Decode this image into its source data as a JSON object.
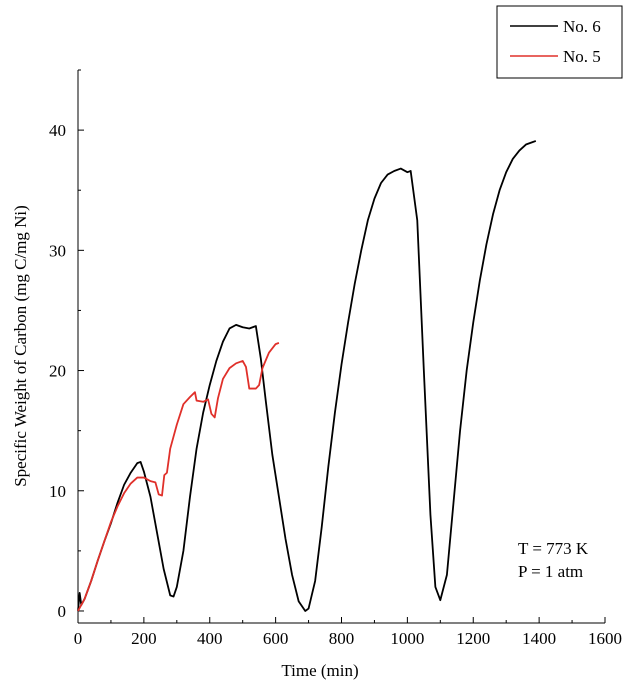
{
  "chart_data": {
    "type": "line",
    "title": "",
    "xlabel": "Time (min)",
    "ylabel": "Specific Weight of Carbon (mg C/mg Ni)",
    "xlim": [
      0,
      1600
    ],
    "ylim": [
      -1,
      45
    ],
    "xticks": [
      0,
      200,
      400,
      600,
      800,
      1000,
      1200,
      1400,
      1600
    ],
    "yticks": [
      0,
      10,
      20,
      30,
      40
    ],
    "grid": false,
    "legend_position": "top-right",
    "annotations": [
      "T = 773 K",
      "P = 1 atm"
    ],
    "series": [
      {
        "name": "No. 6",
        "color": "#000000",
        "points": [
          [
            0,
            0
          ],
          [
            5,
            1.5
          ],
          [
            10,
            0.5
          ],
          [
            20,
            1.0
          ],
          [
            40,
            2.5
          ],
          [
            60,
            4.2
          ],
          [
            80,
            5.8
          ],
          [
            100,
            7.3
          ],
          [
            120,
            9.0
          ],
          [
            140,
            10.5
          ],
          [
            160,
            11.5
          ],
          [
            180,
            12.3
          ],
          [
            190,
            12.4
          ],
          [
            200,
            11.6
          ],
          [
            220,
            9.5
          ],
          [
            240,
            6.5
          ],
          [
            260,
            3.5
          ],
          [
            280,
            1.3
          ],
          [
            290,
            1.2
          ],
          [
            300,
            2.0
          ],
          [
            320,
            5.0
          ],
          [
            340,
            9.5
          ],
          [
            360,
            13.5
          ],
          [
            380,
            16.5
          ],
          [
            400,
            18.8
          ],
          [
            420,
            20.8
          ],
          [
            440,
            22.4
          ],
          [
            460,
            23.5
          ],
          [
            480,
            23.8
          ],
          [
            500,
            23.6
          ],
          [
            520,
            23.5
          ],
          [
            540,
            23.7
          ],
          [
            555,
            21.0
          ],
          [
            570,
            17.5
          ],
          [
            590,
            13.0
          ],
          [
            610,
            9.5
          ],
          [
            630,
            6.0
          ],
          [
            650,
            3.0
          ],
          [
            670,
            0.8
          ],
          [
            690,
            0.0
          ],
          [
            700,
            0.2
          ],
          [
            720,
            2.5
          ],
          [
            740,
            7.0
          ],
          [
            760,
            12.0
          ],
          [
            780,
            16.5
          ],
          [
            800,
            20.5
          ],
          [
            820,
            24.0
          ],
          [
            840,
            27.2
          ],
          [
            860,
            30.0
          ],
          [
            880,
            32.5
          ],
          [
            900,
            34.3
          ],
          [
            920,
            35.6
          ],
          [
            940,
            36.3
          ],
          [
            960,
            36.6
          ],
          [
            980,
            36.8
          ],
          [
            1000,
            36.5
          ],
          [
            1010,
            36.6
          ],
          [
            1030,
            32.5
          ],
          [
            1050,
            20.0
          ],
          [
            1070,
            8.0
          ],
          [
            1085,
            2.0
          ],
          [
            1100,
            0.9
          ],
          [
            1120,
            3.0
          ],
          [
            1140,
            9.0
          ],
          [
            1160,
            15.0
          ],
          [
            1180,
            20.0
          ],
          [
            1200,
            24.0
          ],
          [
            1220,
            27.5
          ],
          [
            1240,
            30.5
          ],
          [
            1260,
            33.0
          ],
          [
            1280,
            35.0
          ],
          [
            1300,
            36.5
          ],
          [
            1320,
            37.6
          ],
          [
            1340,
            38.3
          ],
          [
            1360,
            38.8
          ],
          [
            1380,
            39.0
          ],
          [
            1390,
            39.1
          ]
        ]
      },
      {
        "name": "No. 5",
        "color": "#e0302a",
        "points": [
          [
            0,
            0
          ],
          [
            20,
            1.0
          ],
          [
            40,
            2.5
          ],
          [
            60,
            4.2
          ],
          [
            80,
            5.8
          ],
          [
            100,
            7.4
          ],
          [
            120,
            8.7
          ],
          [
            140,
            9.8
          ],
          [
            160,
            10.6
          ],
          [
            180,
            11.1
          ],
          [
            200,
            11.1
          ],
          [
            220,
            10.8
          ],
          [
            235,
            10.7
          ],
          [
            245,
            9.7
          ],
          [
            255,
            9.6
          ],
          [
            262,
            11.3
          ],
          [
            270,
            11.5
          ],
          [
            280,
            13.5
          ],
          [
            300,
            15.5
          ],
          [
            320,
            17.2
          ],
          [
            340,
            17.8
          ],
          [
            355,
            18.2
          ],
          [
            360,
            17.5
          ],
          [
            380,
            17.4
          ],
          [
            395,
            17.6
          ],
          [
            405,
            16.4
          ],
          [
            415,
            16.1
          ],
          [
            425,
            17.7
          ],
          [
            440,
            19.3
          ],
          [
            460,
            20.2
          ],
          [
            480,
            20.6
          ],
          [
            500,
            20.8
          ],
          [
            510,
            20.3
          ],
          [
            520,
            18.5
          ],
          [
            540,
            18.5
          ],
          [
            550,
            18.8
          ],
          [
            560,
            20.2
          ],
          [
            580,
            21.5
          ],
          [
            600,
            22.2
          ],
          [
            610,
            22.3
          ]
        ]
      }
    ]
  }
}
